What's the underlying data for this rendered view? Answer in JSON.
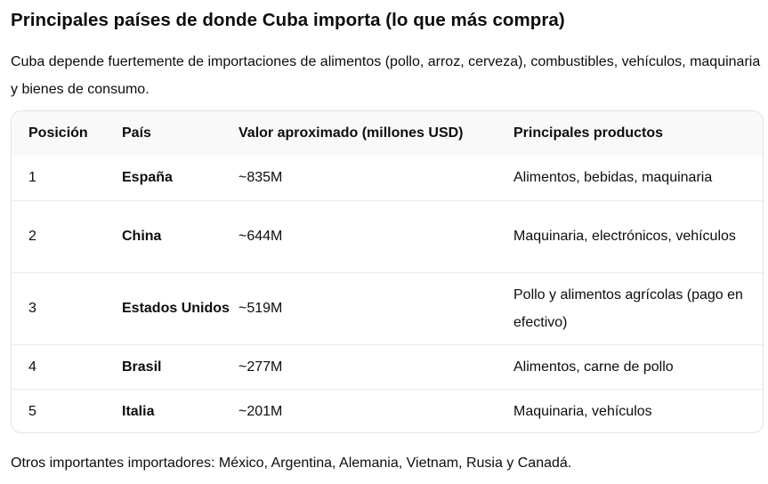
{
  "title": "Principales países de donde Cuba importa (lo que más compra)",
  "intro": "Cuba depende fuertemente de importaciones de alimentos (pollo, arroz, cerveza), combustibles, vehículos, maquinaria y bienes de consumo.",
  "table": {
    "headers": {
      "position": "Posición",
      "country": "País",
      "value": "Valor aproximado (millones USD)",
      "products": "Principales productos"
    },
    "rows": [
      {
        "position": "1",
        "country": "España",
        "value": "~835M",
        "products": "Alimentos, bebidas, maquinaria"
      },
      {
        "position": "2",
        "country": "China",
        "value": "~644M",
        "products": "Maquinaria, electrónicos, vehículos"
      },
      {
        "position": "3",
        "country": "Estados Unidos",
        "value": "~519M",
        "products": "Pollo y alimentos agrícolas (pago en efectivo)"
      },
      {
        "position": "4",
        "country": "Brasil",
        "value": "~277M",
        "products": "Alimentos, carne de pollo"
      },
      {
        "position": "5",
        "country": "Italia",
        "value": "~201M",
        "products": "Maquinaria, vehículos"
      }
    ]
  },
  "footer": "Otros importantes importadores: México, Argentina, Alemania, Vietnam, Rusia y Canadá."
}
